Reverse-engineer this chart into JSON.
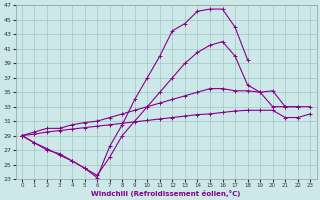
{
  "xlabel": "Windchill (Refroidissement éolien,°C)",
  "xlim": [
    -0.5,
    23.5
  ],
  "ylim": [
    23,
    47
  ],
  "xticks": [
    0,
    1,
    2,
    3,
    4,
    5,
    6,
    7,
    8,
    9,
    10,
    11,
    12,
    13,
    14,
    15,
    16,
    17,
    18,
    19,
    20,
    21,
    22,
    23
  ],
  "yticks": [
    23,
    25,
    27,
    29,
    31,
    33,
    35,
    37,
    39,
    41,
    43,
    45,
    47
  ],
  "bg_color": "#cce8e8",
  "grid_color": "#aacccc",
  "line_color": "#880088",
  "lines": [
    {
      "x": [
        0,
        1,
        2,
        3,
        4,
        5,
        6,
        7,
        8,
        9,
        10,
        11,
        12,
        13,
        14,
        15,
        16,
        17,
        18,
        19,
        20,
        21,
        22,
        23
      ],
      "y": [
        29,
        28,
        27.2,
        26.3,
        25.5,
        24.5,
        23.2,
        27.5,
        30.5,
        34,
        37,
        40,
        43.5,
        44.5,
        46.2,
        46.5,
        46.5,
        44,
        39.5,
        null,
        null,
        null,
        null,
        null
      ]
    },
    {
      "x": [
        0,
        1,
        2,
        3,
        4,
        5,
        6,
        7,
        8,
        9,
        10,
        11,
        12,
        13,
        14,
        15,
        16,
        17,
        18,
        19,
        20,
        21,
        22,
        23
      ],
      "y": [
        29,
        28,
        27,
        26.5,
        25.5,
        24.5,
        23.5,
        26,
        29,
        31,
        33,
        35,
        37,
        39,
        40.5,
        41.5,
        42,
        40,
        36,
        35,
        33,
        33,
        33,
        null
      ]
    },
    {
      "x": [
        0,
        1,
        2,
        3,
        4,
        5,
        6,
        7,
        8,
        9,
        10,
        11,
        12,
        13,
        14,
        15,
        16,
        17,
        18,
        19,
        20,
        21,
        22,
        23
      ],
      "y": [
        29,
        29.5,
        30,
        30,
        30.5,
        30.8,
        31,
        31.5,
        32,
        32.5,
        33,
        33.5,
        34,
        34.5,
        35,
        35.5,
        35.5,
        35.2,
        35.2,
        35,
        35.2,
        33,
        33,
        33
      ]
    },
    {
      "x": [
        0,
        1,
        2,
        3,
        4,
        5,
        6,
        7,
        8,
        9,
        10,
        11,
        12,
        13,
        14,
        15,
        16,
        17,
        18,
        19,
        20,
        21,
        22,
        23
      ],
      "y": [
        29,
        29.2,
        29.5,
        29.7,
        29.9,
        30.1,
        30.3,
        30.5,
        30.7,
        30.9,
        31.1,
        31.3,
        31.5,
        31.7,
        31.9,
        32,
        32.2,
        32.4,
        32.5,
        32.5,
        32.5,
        31.5,
        31.5,
        32
      ]
    }
  ]
}
